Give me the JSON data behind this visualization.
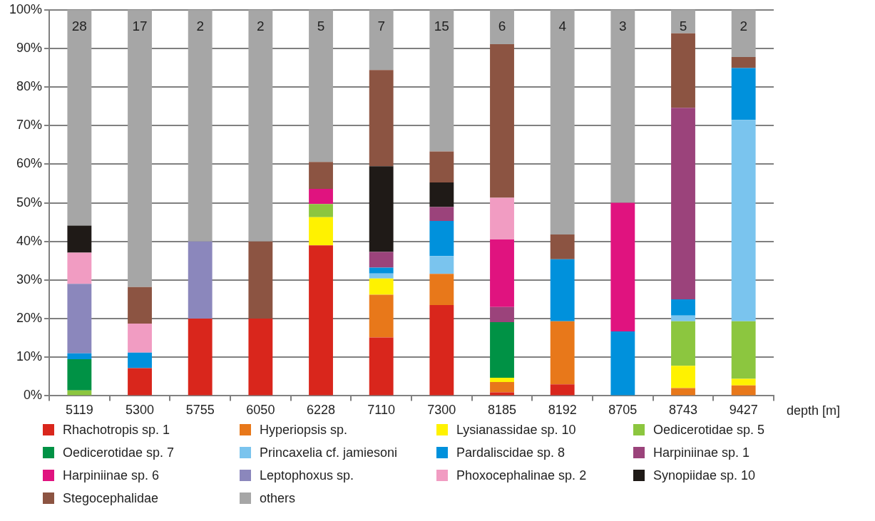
{
  "chart_data": {
    "type": "bar",
    "stacked": true,
    "xlabel": "depth [m]",
    "categories": [
      "5119",
      "5300",
      "5755",
      "6050",
      "6228",
      "7110",
      "7300",
      "8185",
      "8192",
      "8705",
      "8743",
      "9427"
    ],
    "ylim": [
      0,
      100
    ],
    "yticks": [
      {
        "value": 0,
        "label": "0%"
      },
      {
        "value": 10,
        "label": "10%"
      },
      {
        "value": 20,
        "label": "20%"
      },
      {
        "value": 30,
        "label": "30%"
      },
      {
        "value": 40,
        "label": "40%"
      },
      {
        "value": 50,
        "label": "50%"
      },
      {
        "value": 60,
        "label": "60%"
      },
      {
        "value": 70,
        "label": "70%"
      },
      {
        "value": 80,
        "label": "80%"
      },
      {
        "value": 90,
        "label": "90%"
      },
      {
        "value": 100,
        "label": "100%"
      }
    ],
    "grid": "y",
    "legend": "bottom",
    "series": [
      {
        "name": "Rhachotropis sp. 1",
        "color": "#d9261c",
        "values": [
          0,
          7.2,
          20,
          20,
          39,
          15.1,
          23.5,
          0.9,
          3,
          0,
          0,
          0
        ]
      },
      {
        "name": "Hyperiopsis sp.",
        "color": "#e8781a",
        "values": [
          0,
          0,
          0,
          0,
          0,
          11.1,
          8.1,
          2.7,
          16.3,
          0,
          2,
          2.7
        ]
      },
      {
        "name": "Lysianassidae sp. 10",
        "color": "#fff200",
        "values": [
          0,
          0,
          0,
          0,
          7.3,
          4.2,
          0,
          1.1,
          0,
          0,
          5.8,
          1.7
        ]
      },
      {
        "name": "Oedicerotidae sp. 5",
        "color": "#8cc63f",
        "values": [
          1.4,
          0,
          0,
          0,
          3.4,
          0,
          0,
          0,
          0,
          0,
          11.5,
          14.9
        ]
      },
      {
        "name": "Oedicerotidae sp. 7",
        "color": "#009245",
        "values": [
          8.1,
          0,
          0,
          0,
          0,
          0,
          0,
          14.4,
          0,
          0,
          0,
          0
        ]
      },
      {
        "name": "Princaxelia cf. jamiesoni",
        "color": "#7ac4ee",
        "values": [
          0,
          0,
          0,
          0,
          0,
          1.3,
          4.6,
          0,
          0,
          0,
          1.5,
          52.2
        ]
      },
      {
        "name": "Pardaliscidae sp. 8",
        "color": "#0091dc",
        "values": [
          1.5,
          4,
          0,
          0,
          0,
          1.5,
          9.1,
          0,
          16.1,
          16.7,
          4.2,
          13.4
        ]
      },
      {
        "name": "Harpiniinae sp. 1",
        "color": "#9b437b",
        "values": [
          0,
          0,
          0,
          0,
          0,
          4.1,
          3.6,
          3.9,
          0,
          0,
          49.6,
          0
        ]
      },
      {
        "name": "Harpiniinae sp. 6",
        "color": "#e0137f",
        "values": [
          0,
          0,
          0,
          0,
          3.9,
          0,
          0,
          17.5,
          0,
          33.3,
          0,
          0
        ]
      },
      {
        "name": "Leptophoxus sp.",
        "color": "#8b87bc",
        "values": [
          18,
          0,
          20,
          0,
          0,
          0,
          0,
          0,
          0,
          0,
          0,
          0
        ]
      },
      {
        "name": "Phoxocephalinae sp. 2",
        "color": "#f19cc2",
        "values": [
          8.1,
          7.5,
          0,
          0,
          0,
          0,
          0,
          10.8,
          0,
          0,
          0,
          0
        ]
      },
      {
        "name": "Synopiidae sp. 10",
        "color": "#1f1a17",
        "values": [
          7,
          0,
          0,
          0,
          0,
          22.2,
          6.4,
          0,
          0,
          0,
          0,
          0
        ]
      },
      {
        "name": "Stegocephalidae",
        "color": "#8c5442",
        "values": [
          0,
          9.5,
          0,
          20,
          7,
          24.9,
          8,
          39.8,
          6.4,
          0,
          19.3,
          2.9
        ]
      },
      {
        "name": "others",
        "color": "#a6a6a6",
        "values": [
          55.9,
          71.8,
          60,
          60,
          39.4,
          15.6,
          36.7,
          8.9,
          58.2,
          50,
          6.1,
          12.2
        ]
      }
    ],
    "annotations": [
      "28",
      "17",
      "2",
      "2",
      "5",
      "7",
      "15",
      "6",
      "4",
      "3",
      "5",
      "2"
    ]
  }
}
